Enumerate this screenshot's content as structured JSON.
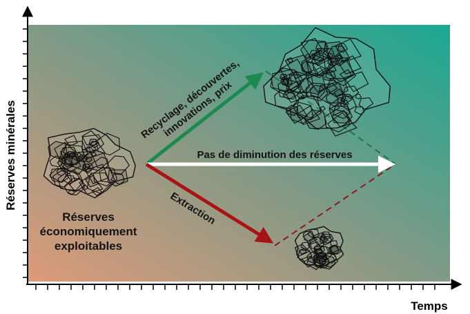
{
  "y_axis_label": "Réserves minérales",
  "x_axis_label": "Temps",
  "arrows": {
    "growth_label_line1": "Recyclage, découvertes,",
    "growth_label_line2": "innovations, prix",
    "flat_label": "Pas de diminution des réserves",
    "extraction_label": "Extraction"
  },
  "reserves_label_lines": [
    "Réserves",
    "économiquement",
    "exploitables"
  ],
  "colors": {
    "growth_arrow": "#1a8a4e",
    "flat_arrow": "#ffffff",
    "extraction_arrow": "#a81414",
    "background_top_right": "#19a892",
    "background_bottom_left": "#df9a7a"
  },
  "icons": [
    "rock-pile-large",
    "rock-pile-medium",
    "rock-pile-small"
  ]
}
